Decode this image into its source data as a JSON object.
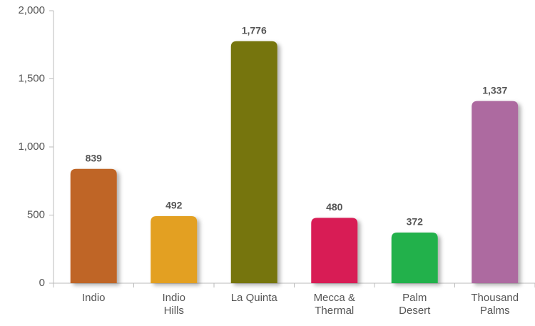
{
  "chart_data": {
    "type": "bar",
    "categories": [
      "Indio",
      "Indio\nHills",
      "La Quinta",
      "Mecca &\nThermal",
      "Palm\nDesert",
      "Thousand\nPalms"
    ],
    "values": [
      839,
      492,
      1776,
      480,
      372,
      1337
    ],
    "value_labels": [
      "839",
      "492",
      "1,776",
      "480",
      "372",
      "1,337"
    ],
    "colors": [
      "#bf6526",
      "#e3a020",
      "#767508",
      "#d81f55",
      "#22b14c",
      "#ad6aa0"
    ],
    "ylim": [
      0,
      2000
    ],
    "yticks": [
      0,
      500,
      {
        "value": 1000,
        "label": "1,000"
      },
      {
        "value": 1500,
        "label": "1,500"
      },
      {
        "value": 2000,
        "label": "2,000"
      }
    ]
  }
}
